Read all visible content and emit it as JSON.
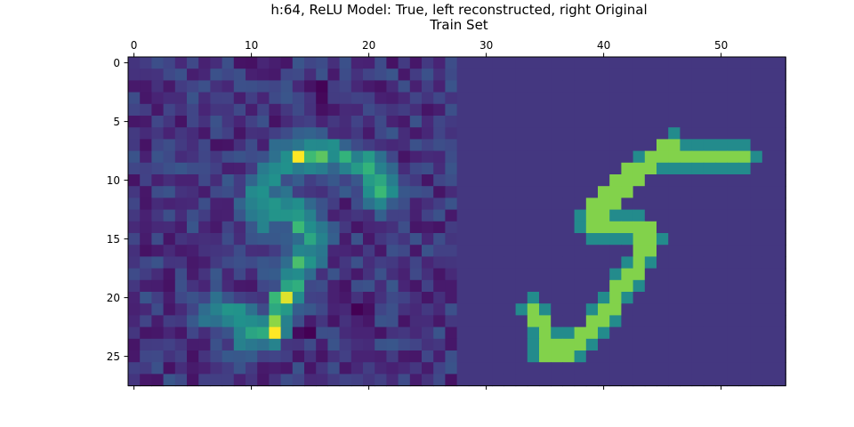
{
  "chart_data": {
    "type": "heatmap",
    "title_line1": "h:64, ReLU Model: True, left reconstructed, right Original",
    "title_line2": "Train Set",
    "xlabel": "",
    "ylabel": "",
    "xlim": [
      -0.5,
      55.5
    ],
    "ylim": [
      27.5,
      -0.5
    ],
    "x_axis_position": "top",
    "grid": false,
    "colormap": "viridis",
    "x_ticks": [
      0,
      10,
      20,
      30,
      40,
      50
    ],
    "y_ticks": [
      0,
      5,
      10,
      15,
      20,
      25
    ],
    "rows": 28,
    "cols": 56,
    "panels": [
      {
        "name": "left reconstructed",
        "col_offset": 0,
        "background_level": 0.2,
        "stroke_level": 0.68,
        "strokes": [
          [
            [
              9,
              22
            ],
            [
              10,
              23.5
            ]
          ],
          [
            [
              10,
              23.5
            ],
            [
              12,
              22
            ]
          ],
          [
            [
              12,
              22
            ],
            [
              13,
              20
            ]
          ],
          [
            [
              13,
              20
            ],
            [
              14,
              18
            ]
          ],
          [
            [
              14,
              18
            ],
            [
              15,
              15
            ]
          ],
          [
            [
              15,
              15
            ],
            [
              14,
              13
            ]
          ],
          [
            [
              14,
              13
            ],
            [
              12,
              12
            ]
          ],
          [
            [
              12,
              12
            ],
            [
              11,
              13
            ]
          ],
          [
            [
              11,
              13
            ],
            [
              11,
              11
            ]
          ],
          [
            [
              11,
              11
            ],
            [
              12,
              9
            ]
          ],
          [
            [
              12,
              9
            ],
            [
              14,
              8
            ]
          ],
          [
            [
              14,
              8
            ],
            [
              17,
              8
            ]
          ],
          [
            [
              17,
              8
            ],
            [
              20,
              9
            ]
          ],
          [
            [
              20,
              9
            ],
            [
              21,
              11
            ]
          ],
          [
            [
              7,
              21
            ],
            [
              9,
              22
            ]
          ]
        ],
        "hot_spots": [
          [
            14,
            8
          ],
          [
            13,
            20
          ],
          [
            12,
            23
          ]
        ],
        "dark_spots": [
          [
            13,
            5
          ],
          [
            16,
            3
          ],
          [
            19,
            21
          ],
          [
            14,
            23
          ]
        ]
      },
      {
        "name": "right Original",
        "col_offset": 28,
        "background_level": 0.2,
        "stroke_level": 0.86,
        "edge_level": 0.6,
        "strokes": [
          [
            [
              7,
              23
            ],
            [
              7,
              24.5
            ]
          ],
          [
            [
              7,
              24.5
            ],
            [
              9,
              24.5
            ]
          ],
          [
            [
              9,
              24.5
            ],
            [
              11,
              23
            ]
          ],
          [
            [
              11,
              23
            ],
            [
              13,
              20
            ]
          ],
          [
            [
              13,
              20
            ],
            [
              15,
              17
            ]
          ],
          [
            [
              15,
              17
            ],
            [
              16,
              15
            ]
          ],
          [
            [
              16,
              15
            ],
            [
              15,
              14
            ]
          ],
          [
            [
              15,
              14
            ],
            [
              11,
              14
            ]
          ],
          [
            [
              11,
              14
            ],
            [
              11,
              13
            ]
          ],
          [
            [
              11,
              13
            ],
            [
              13,
              11
            ]
          ],
          [
            [
              13,
              11
            ],
            [
              14,
              10
            ]
          ],
          [
            [
              14,
              10
            ],
            [
              15,
              9
            ]
          ],
          [
            [
              15,
              9
            ],
            [
              17,
              8
            ]
          ],
          [
            [
              17,
              8
            ],
            [
              24,
              8
            ]
          ],
          [
            [
              17,
              8
            ],
            [
              18,
              7
            ]
          ],
          [
            [
              6,
              21
            ],
            [
              7,
              23
            ]
          ]
        ],
        "hot_spots": [],
        "dark_spots": []
      }
    ]
  }
}
